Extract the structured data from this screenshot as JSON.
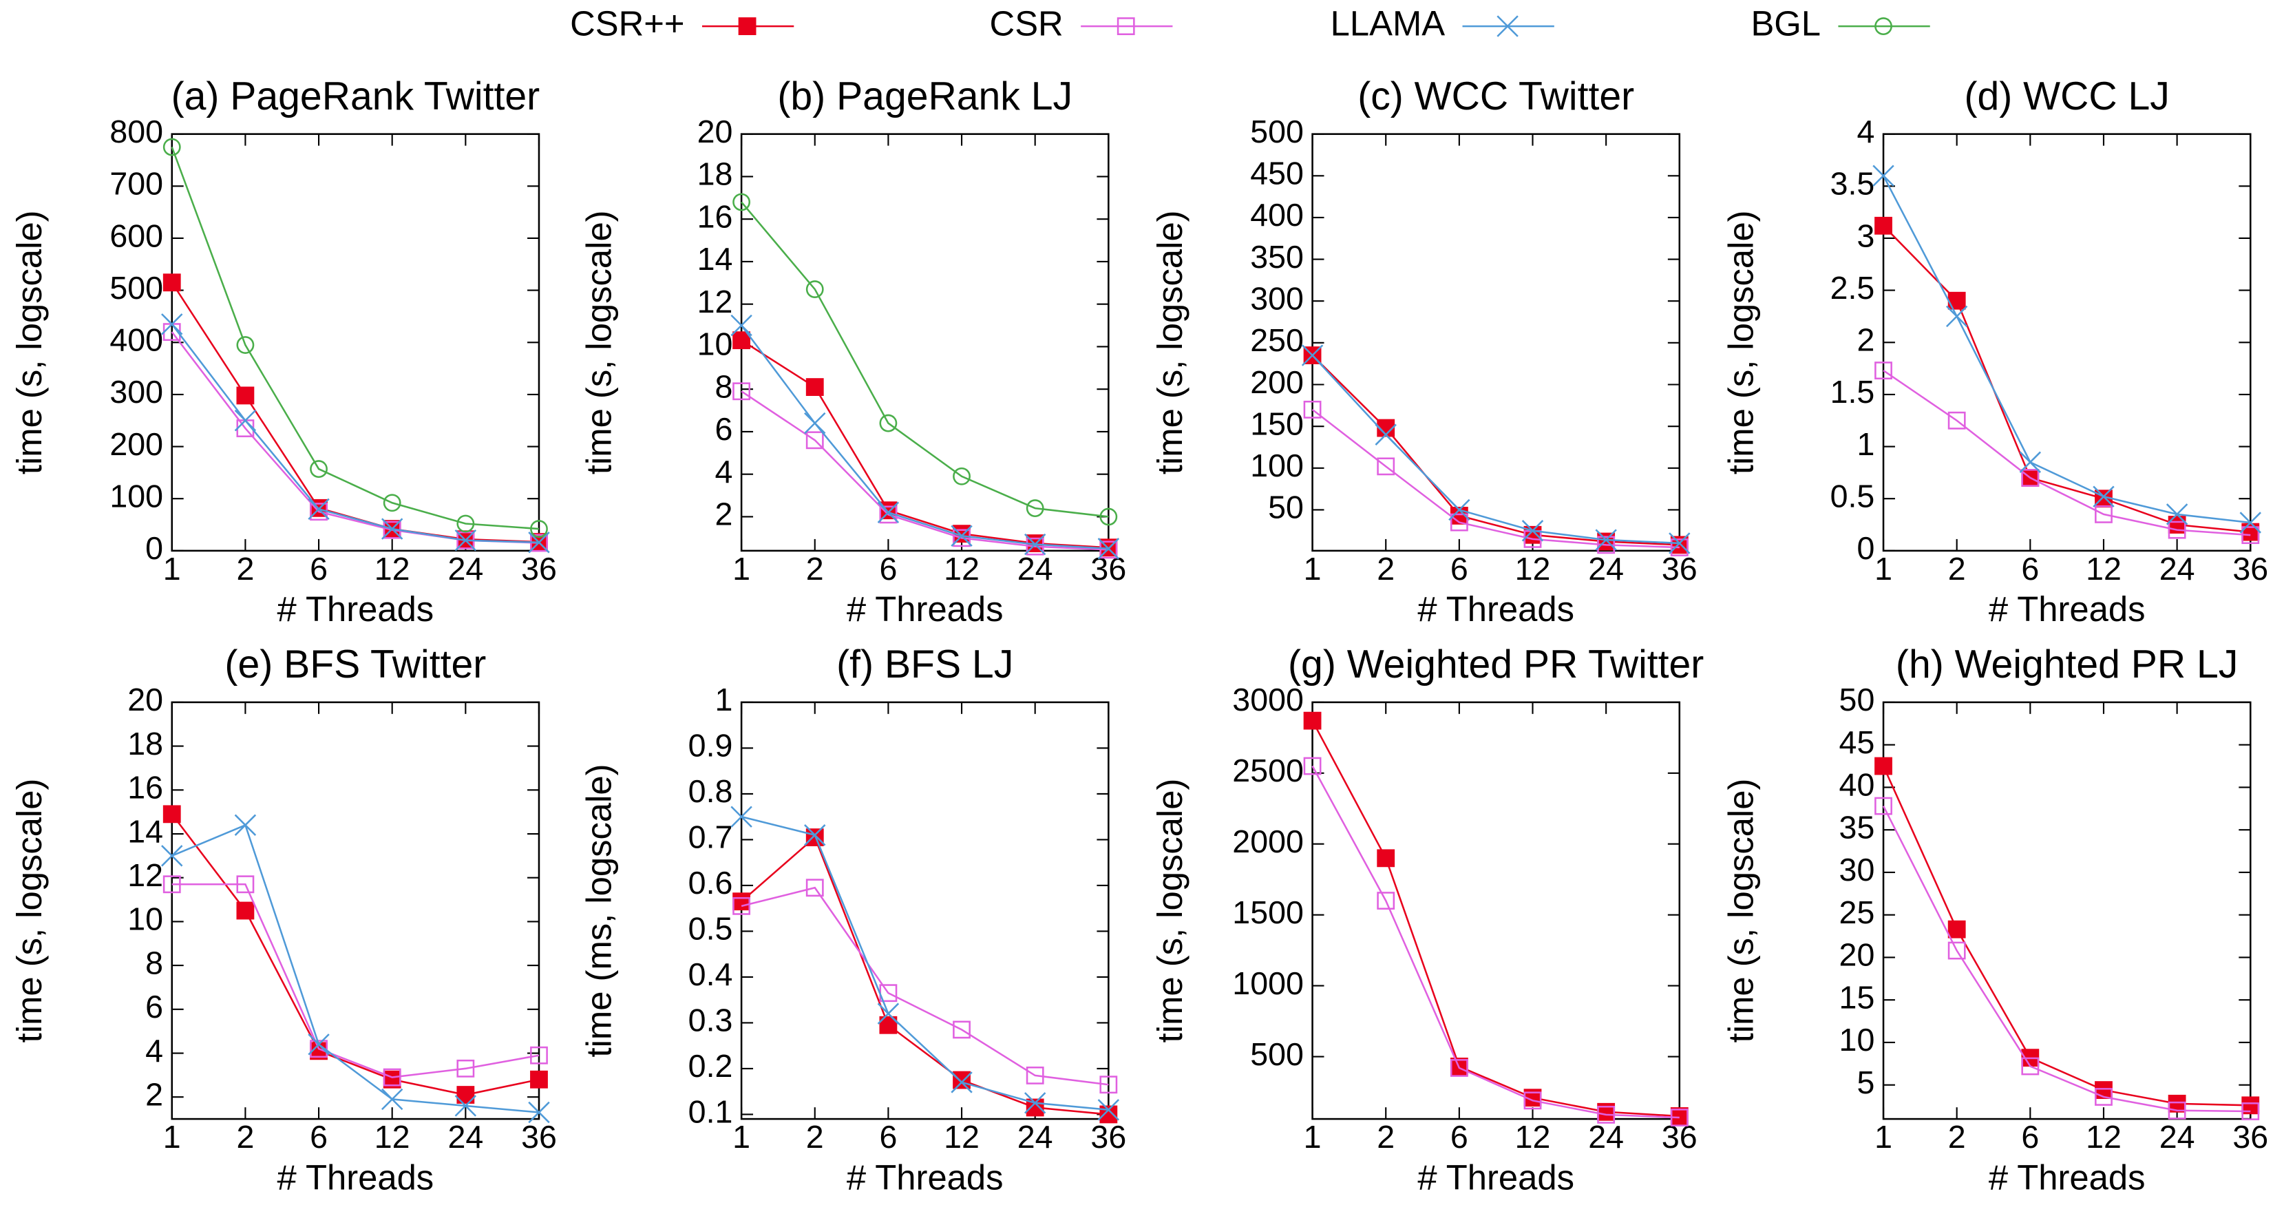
{
  "chart_data": [
    {
      "type": "line",
      "title": "(a) PageRank Twitter",
      "x_label": "# Threads",
      "y_label": "time (s, logscale)",
      "categories": [
        1,
        2,
        6,
        12,
        24,
        36
      ],
      "ylim": [
        0,
        800
      ],
      "yticks": [
        0,
        100,
        200,
        300,
        400,
        500,
        600,
        700,
        800
      ],
      "series": [
        {
          "name": "CSR++",
          "color": "#e8001c",
          "marker": "square-filled",
          "values": [
            515,
            298,
            82,
            42,
            22,
            17
          ]
        },
        {
          "name": "CSR",
          "color": "#e060e0",
          "marker": "square-open",
          "values": [
            420,
            235,
            75,
            40,
            20,
            15
          ]
        },
        {
          "name": "LLAMA",
          "color": "#4f9ad8",
          "marker": "cross",
          "values": [
            435,
            250,
            80,
            42,
            20,
            16
          ]
        },
        {
          "name": "BGL",
          "color": "#4aae4a",
          "marker": "circle-open",
          "values": [
            775,
            395,
            157,
            92,
            52,
            42
          ]
        }
      ]
    },
    {
      "type": "line",
      "title": "(b) PageRank LJ",
      "x_label": "# Threads",
      "y_label": "time (s, logscale)",
      "categories": [
        1,
        2,
        6,
        12,
        24,
        36
      ],
      "ylim": [
        0.4,
        20
      ],
      "yticks": [
        2,
        4,
        6,
        8,
        10,
        12,
        14,
        16,
        18,
        20
      ],
      "series": [
        {
          "name": "CSR++",
          "color": "#e8001c",
          "marker": "square-filled",
          "values": [
            10.3,
            8.1,
            2.3,
            1.2,
            0.75,
            0.55
          ]
        },
        {
          "name": "CSR",
          "color": "#e060e0",
          "marker": "square-open",
          "values": [
            7.9,
            5.6,
            2.1,
            1.0,
            0.6,
            0.45
          ]
        },
        {
          "name": "LLAMA",
          "color": "#4f9ad8",
          "marker": "cross",
          "values": [
            11.0,
            6.4,
            2.2,
            1.1,
            0.7,
            0.5
          ]
        },
        {
          "name": "BGL",
          "color": "#4aae4a",
          "marker": "circle-open",
          "values": [
            16.8,
            12.7,
            6.4,
            3.9,
            2.4,
            2.0
          ]
        }
      ]
    },
    {
      "type": "line",
      "title": "(c) WCC Twitter",
      "x_label": "# Threads",
      "y_label": "time (s, logscale)",
      "categories": [
        1,
        2,
        6,
        12,
        24,
        36
      ],
      "ylim": [
        1,
        500
      ],
      "yticks": [
        50,
        100,
        150,
        200,
        250,
        300,
        350,
        400,
        450,
        500
      ],
      "series": [
        {
          "name": "CSR++",
          "color": "#e8001c",
          "marker": "square-filled",
          "values": [
            235,
            148,
            43,
            20,
            12,
            8
          ]
        },
        {
          "name": "CSR",
          "color": "#e060e0",
          "marker": "square-open",
          "values": [
            170,
            102,
            35,
            15,
            8,
            5
          ]
        },
        {
          "name": "LLAMA",
          "color": "#4f9ad8",
          "marker": "cross",
          "values": [
            235,
            140,
            50,
            25,
            14,
            10
          ]
        }
      ]
    },
    {
      "type": "line",
      "title": "(d) WCC LJ",
      "x_label": "# Threads",
      "y_label": "time (s, logscale)",
      "categories": [
        1,
        2,
        6,
        12,
        24,
        36
      ],
      "ylim": [
        0,
        4
      ],
      "yticks": [
        0,
        0.5,
        1,
        1.5,
        2,
        2.5,
        3,
        3.5,
        4
      ],
      "series": [
        {
          "name": "CSR++",
          "color": "#e8001c",
          "marker": "square-filled",
          "values": [
            3.12,
            2.4,
            0.7,
            0.5,
            0.25,
            0.18
          ]
        },
        {
          "name": "CSR",
          "color": "#e060e0",
          "marker": "square-open",
          "values": [
            1.73,
            1.25,
            0.7,
            0.35,
            0.2,
            0.15
          ]
        },
        {
          "name": "LLAMA",
          "color": "#4f9ad8",
          "marker": "cross",
          "values": [
            3.6,
            2.25,
            0.85,
            0.52,
            0.35,
            0.27
          ]
        }
      ]
    },
    {
      "type": "line",
      "title": "(e) BFS Twitter",
      "x_label": "# Threads",
      "y_label": "time (s, logscale)",
      "categories": [
        1,
        2,
        6,
        12,
        24,
        36
      ],
      "ylim": [
        1,
        20
      ],
      "yticks": [
        2,
        4,
        6,
        8,
        10,
        12,
        14,
        16,
        18,
        20
      ],
      "series": [
        {
          "name": "CSR++",
          "color": "#e8001c",
          "marker": "square-filled",
          "values": [
            14.9,
            10.5,
            4.1,
            2.8,
            2.1,
            2.8
          ]
        },
        {
          "name": "CSR",
          "color": "#e060e0",
          "marker": "square-open",
          "values": [
            11.7,
            11.7,
            4.2,
            2.9,
            3.3,
            3.9
          ]
        },
        {
          "name": "LLAMA",
          "color": "#4f9ad8",
          "marker": "cross",
          "values": [
            13.0,
            14.4,
            4.4,
            1.9,
            1.6,
            1.3
          ]
        }
      ]
    },
    {
      "type": "line",
      "title": "(f) BFS LJ",
      "x_label": "# Threads",
      "y_label": "time (ms, logscale)",
      "categories": [
        1,
        2,
        6,
        12,
        24,
        36
      ],
      "ylim": [
        0.09,
        1
      ],
      "yticks": [
        0.1,
        0.2,
        0.3,
        0.4,
        0.5,
        0.6,
        0.7,
        0.8,
        0.9,
        1
      ],
      "series": [
        {
          "name": "CSR++",
          "color": "#e8001c",
          "marker": "square-filled",
          "values": [
            0.565,
            0.705,
            0.295,
            0.175,
            0.115,
            0.1
          ]
        },
        {
          "name": "CSR",
          "color": "#e060e0",
          "marker": "square-open",
          "values": [
            0.555,
            0.595,
            0.365,
            0.285,
            0.185,
            0.165
          ]
        },
        {
          "name": "LLAMA",
          "color": "#4f9ad8",
          "marker": "cross",
          "values": [
            0.75,
            0.71,
            0.32,
            0.17,
            0.125,
            0.11
          ]
        }
      ]
    },
    {
      "type": "line",
      "title": "(g) Weighted PR Twitter",
      "x_label": "# Threads",
      "y_label": "time (s, logscale)",
      "categories": [
        1,
        2,
        6,
        12,
        24,
        36
      ],
      "ylim": [
        60,
        3000
      ],
      "yticks": [
        500,
        1000,
        1500,
        2000,
        2500,
        3000
      ],
      "series": [
        {
          "name": "CSR++",
          "color": "#e8001c",
          "marker": "square-filled",
          "values": [
            2870,
            1900,
            430,
            210,
            110,
            80
          ]
        },
        {
          "name": "CSR",
          "color": "#e060e0",
          "marker": "square-open",
          "values": [
            2550,
            1600,
            420,
            190,
            90,
            70
          ]
        }
      ]
    },
    {
      "type": "line",
      "title": "(h) Weighted PR LJ",
      "x_label": "# Threads",
      "y_label": "time (s, logscale)",
      "categories": [
        1,
        2,
        6,
        12,
        24,
        36
      ],
      "ylim": [
        1,
        50
      ],
      "yticks": [
        5,
        10,
        15,
        20,
        25,
        30,
        35,
        40,
        45,
        50
      ],
      "series": [
        {
          "name": "CSR++",
          "color": "#e8001c",
          "marker": "square-filled",
          "values": [
            42.5,
            23.3,
            8.2,
            4.4,
            2.8,
            2.6
          ]
        },
        {
          "name": "CSR",
          "color": "#e060e0",
          "marker": "square-open",
          "values": [
            37.8,
            20.8,
            7.2,
            3.6,
            2.0,
            1.9
          ]
        }
      ]
    }
  ]
}
